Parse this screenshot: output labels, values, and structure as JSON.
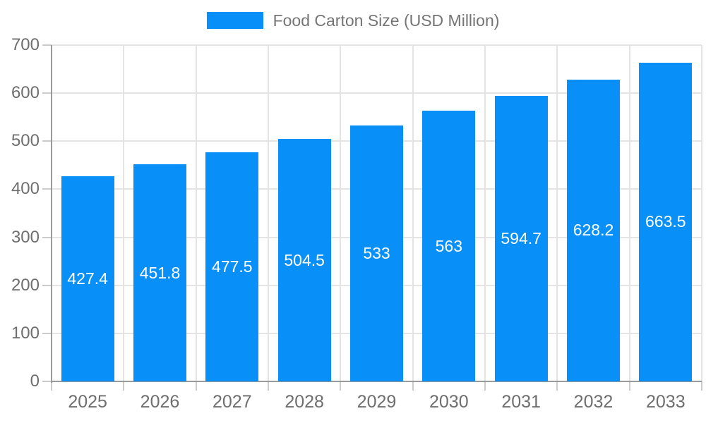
{
  "chart_data": {
    "type": "bar",
    "title": "",
    "legend": "Food Carton Size (USD Million)",
    "legend_position": "top",
    "categories": [
      "2025",
      "2026",
      "2027",
      "2028",
      "2029",
      "2030",
      "2031",
      "2032",
      "2033"
    ],
    "values": [
      427.4,
      451.8,
      477.5,
      504.5,
      533,
      563,
      594.7,
      628.2,
      663.5
    ],
    "value_labels": [
      "427.4",
      "451.8",
      "477.5",
      "504.5",
      "533",
      "563",
      "594.7",
      "628.2",
      "663.5"
    ],
    "xlabel": "",
    "ylabel": "",
    "ylim": [
      0,
      700
    ],
    "y_ticks": [
      0,
      100,
      200,
      300,
      400,
      500,
      600,
      700
    ],
    "grid": true,
    "colors": {
      "bar": "#0890F8",
      "bar_label": "#FFFFFF",
      "gridline": "#E4E4E4",
      "axis_line": "#9A9A9A",
      "tick": "#CCCCCC",
      "axis_label": "#6E6E6E",
      "legend_text": "#757575",
      "background": "#FFFFFF"
    }
  }
}
